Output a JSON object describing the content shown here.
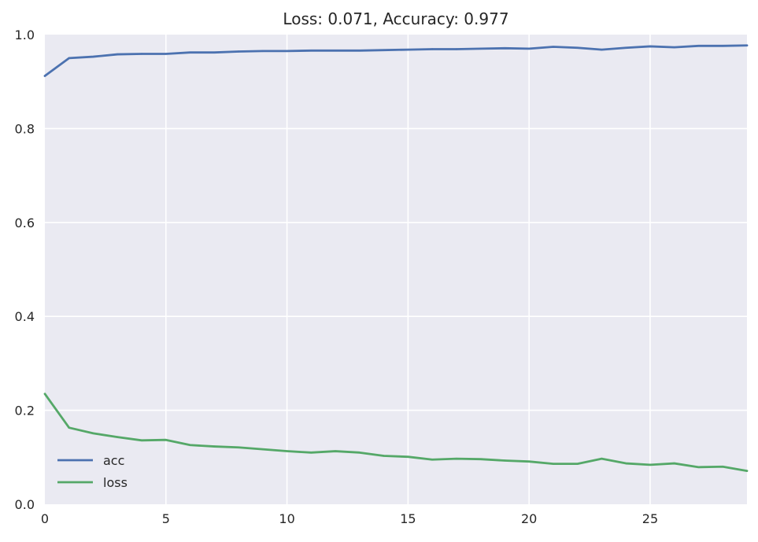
{
  "chart_data": {
    "type": "line",
    "title": "Loss: 0.071, Accuracy: 0.977",
    "xlabel": "",
    "ylabel": "",
    "xlim": [
      0,
      29
    ],
    "ylim": [
      0,
      1.0
    ],
    "xticks": [
      0,
      5,
      10,
      15,
      20,
      25
    ],
    "yticks": [
      0.0,
      0.2,
      0.4,
      0.6,
      0.8,
      1.0
    ],
    "xtick_labels": [
      "0",
      "5",
      "10",
      "15",
      "20",
      "25"
    ],
    "ytick_labels": [
      "0.0",
      "0.2",
      "0.4",
      "0.6",
      "0.8",
      "1.0"
    ],
    "grid": true,
    "legend_position": "lower-left",
    "background_color": "#eaeaf2",
    "grid_color": "#ffffff",
    "x": [
      0,
      1,
      2,
      3,
      4,
      5,
      6,
      7,
      8,
      9,
      10,
      11,
      12,
      13,
      14,
      15,
      16,
      17,
      18,
      19,
      20,
      21,
      22,
      23,
      24,
      25,
      26,
      27,
      28,
      29
    ],
    "series": [
      {
        "name": "acc",
        "color": "#4c72b0",
        "values": [
          0.912,
          0.95,
          0.953,
          0.958,
          0.959,
          0.959,
          0.962,
          0.962,
          0.964,
          0.965,
          0.965,
          0.966,
          0.966,
          0.966,
          0.967,
          0.968,
          0.969,
          0.969,
          0.97,
          0.971,
          0.97,
          0.974,
          0.972,
          0.968,
          0.972,
          0.975,
          0.973,
          0.976,
          0.976,
          0.977
        ]
      },
      {
        "name": "loss",
        "color": "#55a868",
        "values": [
          0.235,
          0.163,
          0.151,
          0.143,
          0.136,
          0.137,
          0.126,
          0.123,
          0.121,
          0.117,
          0.113,
          0.11,
          0.113,
          0.11,
          0.103,
          0.101,
          0.095,
          0.097,
          0.096,
          0.093,
          0.091,
          0.086,
          0.086,
          0.097,
          0.087,
          0.084,
          0.087,
          0.079,
          0.08,
          0.071
        ]
      }
    ]
  }
}
